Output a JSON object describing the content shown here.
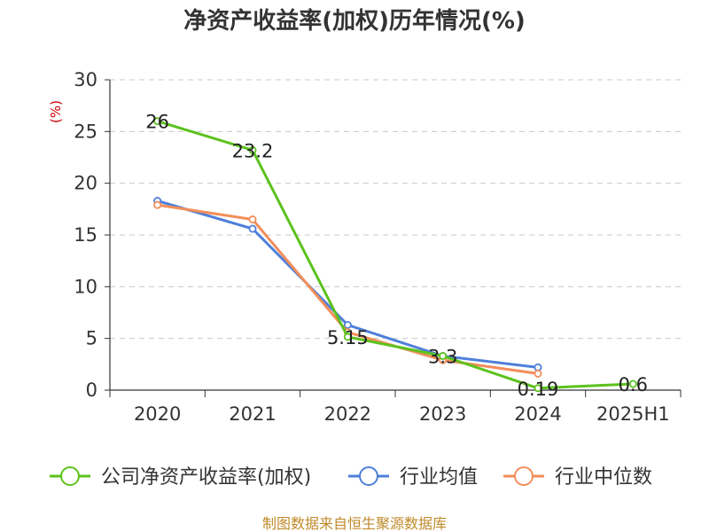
{
  "chart_data": {
    "type": "line",
    "title": "净资产收益率(加权)历年情况(%)",
    "unit": "(%)",
    "categories": [
      "2020",
      "2021",
      "2022",
      "2023",
      "2024",
      "2025H1"
    ],
    "ylim": [
      0,
      30
    ],
    "yticks": [
      0,
      5,
      10,
      15,
      20,
      25,
      30
    ],
    "grid": true,
    "legend_position": "bottom",
    "series": [
      {
        "name": "公司净资产收益率(加权)",
        "color": "#5cc21e",
        "values": [
          26,
          23.2,
          5.15,
          3.3,
          0.19,
          0.6
        ],
        "show_labels": true
      },
      {
        "name": "行业均值",
        "color": "#4e7fd9",
        "values": [
          18.3,
          15.6,
          6.3,
          3.3,
          2.2,
          null
        ],
        "show_labels": false
      },
      {
        "name": "行业中位数",
        "color": "#f28e5a",
        "values": [
          17.9,
          16.5,
          5.6,
          2.9,
          1.6,
          null
        ],
        "show_labels": false
      }
    ],
    "data_labels": [
      "26",
      "23.2",
      "5.15",
      "3.3",
      "0.19",
      "0.6"
    ],
    "source": "制图数据来自恒生聚源数据库"
  }
}
